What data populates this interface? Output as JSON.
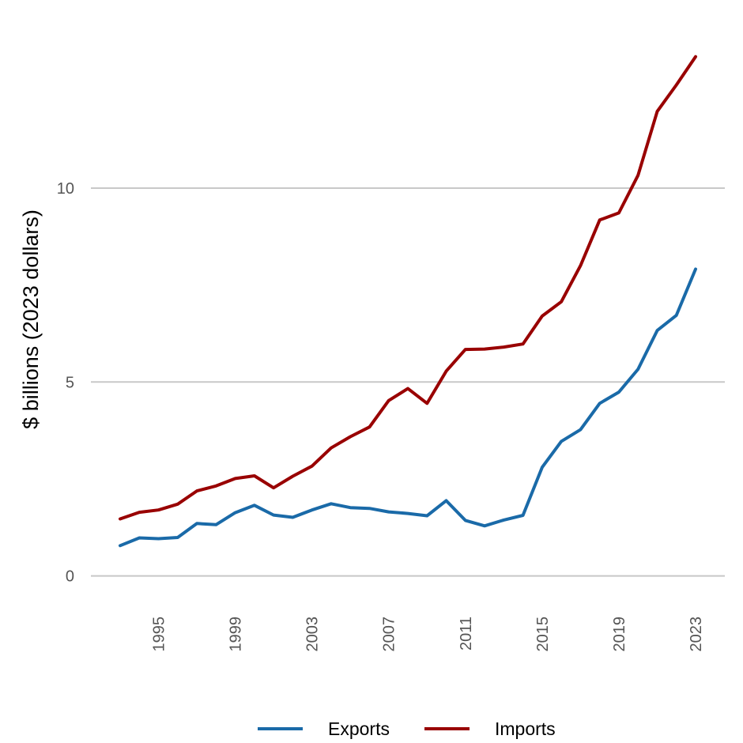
{
  "chart_data": {
    "type": "line",
    "title": "",
    "xlabel": "",
    "ylabel": "$ billions (2023 dollars)",
    "x": [
      1993,
      1994,
      1995,
      1996,
      1997,
      1998,
      1999,
      2000,
      2001,
      2002,
      2003,
      2004,
      2005,
      2006,
      2007,
      2008,
      2009,
      2010,
      2011,
      2012,
      2013,
      2014,
      2015,
      2016,
      2017,
      2018,
      2019,
      2020,
      2021,
      2022,
      2023
    ],
    "xticks": [
      "1995",
      "1999",
      "2003",
      "2007",
      "2011",
      "2015",
      "2019",
      "2023"
    ],
    "yticks": [
      "0",
      "5",
      "10"
    ],
    "ylim": [
      -0.6,
      14.2
    ],
    "grid": "horizontal",
    "legend_position": "bottom",
    "series": [
      {
        "name": "Exports",
        "color": "#1a6aa8",
        "values": [
          0.78,
          0.98,
          0.96,
          0.99,
          1.35,
          1.32,
          1.63,
          1.82,
          1.57,
          1.51,
          1.7,
          1.86,
          1.76,
          1.74,
          1.65,
          1.61,
          1.55,
          1.94,
          1.43,
          1.29,
          1.44,
          1.56,
          2.8,
          3.47,
          3.77,
          4.45,
          4.74,
          5.33,
          6.33,
          6.72,
          7.91
        ]
      },
      {
        "name": "Imports",
        "color": "#990000",
        "values": [
          1.47,
          1.64,
          1.7,
          1.85,
          2.19,
          2.32,
          2.51,
          2.58,
          2.27,
          2.57,
          2.83,
          3.3,
          3.59,
          3.84,
          4.52,
          4.83,
          4.45,
          5.28,
          5.84,
          5.85,
          5.9,
          5.98,
          6.7,
          7.07,
          8.0,
          9.18,
          9.36,
          10.33,
          11.98,
          12.66,
          13.39
        ]
      }
    ]
  }
}
